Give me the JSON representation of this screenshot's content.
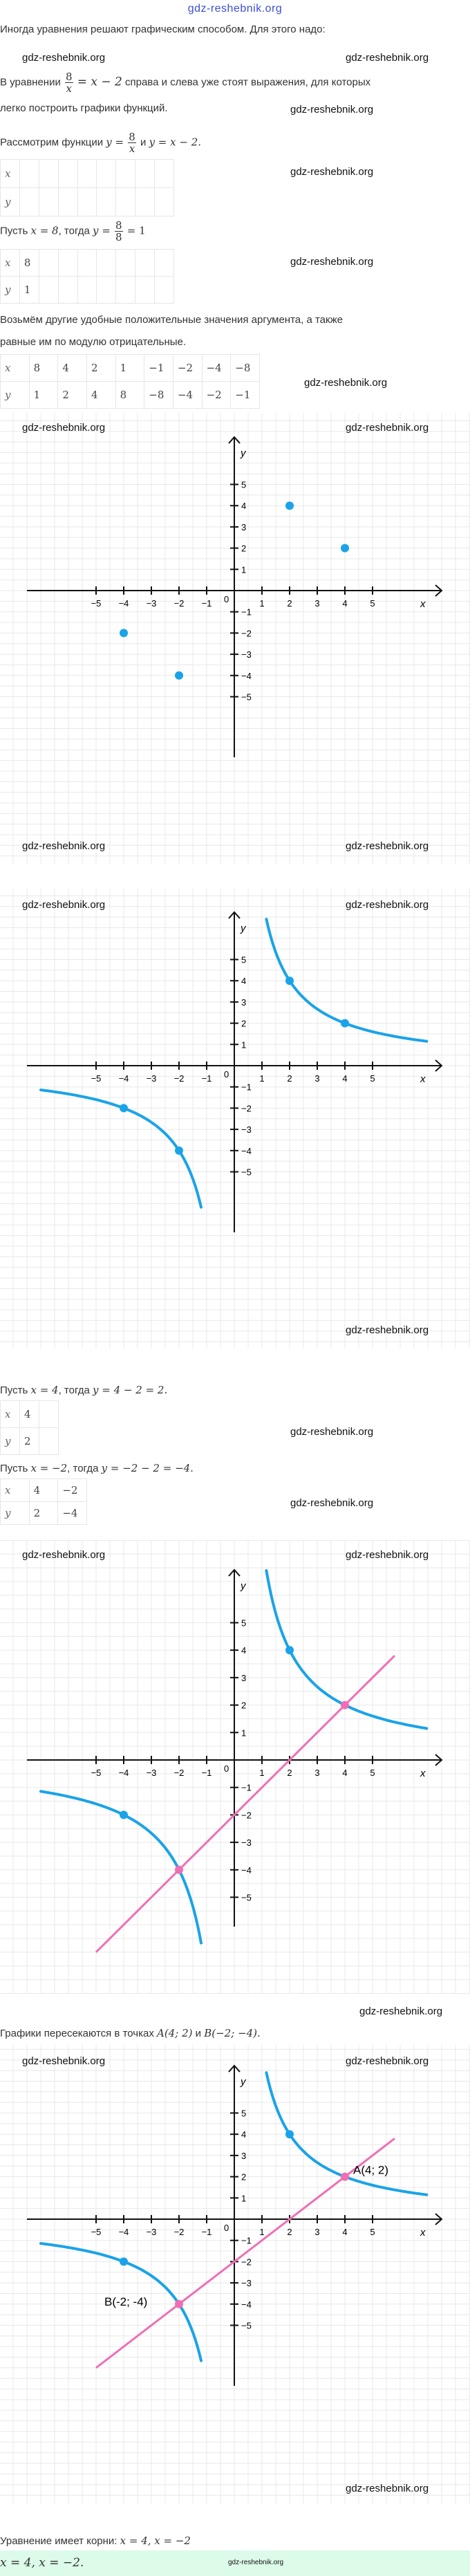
{
  "watermark": "gdz-reshebnik.org",
  "header": {
    "logo": "gdz-reshebnik.org"
  },
  "intro": {
    "line1": "Иногда уравнения решают графическим способом. Для этого надо:",
    "line2_before": "В уравнении",
    "line2_num": "8",
    "line2_den": "x",
    "line2_eq": "= x − 2",
    "line2_after": "справа и слева уже стоят выражения, для которых",
    "line3": "легко построить графики функций."
  },
  "consider": {
    "before": "Рассмотрим функции",
    "y1": "y =",
    "num": "8",
    "den": "x",
    "and": "и",
    "y2": "y = x − 2."
  },
  "table_empty": {
    "rows": [
      [
        "x",
        "",
        "",
        "",
        "",
        "",
        "",
        "",
        ""
      ],
      [
        "y",
        "",
        "",
        "",
        "",
        "",
        "",
        "",
        ""
      ]
    ]
  },
  "let8": {
    "before": "Пусть",
    "x": "x = 8",
    "then": ", тогда",
    "y": "y =",
    "num": "8",
    "den": "8",
    "res": "= 1"
  },
  "table_8": {
    "rows": [
      [
        "x",
        "8",
        "",
        "",
        "",
        "",
        "",
        "",
        ""
      ],
      [
        "y",
        "1",
        "",
        "",
        "",
        "",
        "",
        "",
        ""
      ]
    ]
  },
  "other": {
    "line1": "Возьмём другие удобные положительные значения аргумента, а также",
    "line2": "равные им по модулю отрицательные."
  },
  "table_full": {
    "rows": [
      [
        "x",
        "8",
        "4",
        "2",
        "1",
        "−1",
        "−2",
        "−4",
        "−8"
      ],
      [
        "y",
        "1",
        "2",
        "4",
        "8",
        "−8",
        "−4",
        "−2",
        "−1"
      ]
    ]
  },
  "let4": {
    "before": "Пусть",
    "x": "x = 4",
    "then": ", тогда",
    "y": "y = 4 − 2 = 2."
  },
  "table_4": {
    "rows": [
      [
        "x",
        "4",
        ""
      ],
      [
        "y",
        "2",
        ""
      ]
    ]
  },
  "letm2": {
    "before": "Пусть",
    "x": "x = −2",
    "then": ", тогда",
    "y": "y = −2 − 2 = −4."
  },
  "table_m2": {
    "rows": [
      [
        "x",
        "4",
        "−2"
      ],
      [
        "y",
        "2",
        "−4"
      ]
    ]
  },
  "intersect": {
    "before": "Графики пересекаются в точках",
    "a": "A(4; 2)",
    "and": "и",
    "b": "B(−2; −4)."
  },
  "roots": {
    "before": "Уравнение имеет корни:",
    "value": "x = 4, x = −2"
  },
  "answer": {
    "value": "x = 4, x = −2."
  },
  "colors": {
    "hyperbola": "#1aa3e8",
    "line": "#ef6fb4",
    "grid": "#e8e8e8",
    "axis": "#111111",
    "answer_bg": "#dcfbe9"
  },
  "chart_data": [
    {
      "type": "scatter",
      "xlabel": "x",
      "ylabel": "y",
      "origin_label": "0",
      "x_ticks": [
        "−5",
        "−4",
        "−3",
        "−2",
        "−1",
        "1",
        "2",
        "3",
        "4",
        "5"
      ],
      "y_ticks": [
        "5",
        "4",
        "3",
        "2",
        "1",
        "−1",
        "−2",
        "−3",
        "−4",
        "−5"
      ],
      "grid": true,
      "points": [
        [
          2,
          4
        ],
        [
          4,
          2
        ],
        [
          -4,
          -2
        ],
        [
          -2,
          -4
        ]
      ]
    },
    {
      "type": "line",
      "xlabel": "x",
      "ylabel": "y",
      "origin_label": "0",
      "x_ticks": [
        "−5",
        "−4",
        "−3",
        "−2",
        "−1",
        "1",
        "2",
        "3",
        "4",
        "5"
      ],
      "y_ticks": [
        "5",
        "4",
        "3",
        "2",
        "1",
        "−1",
        "−2",
        "−3",
        "−4",
        "−5"
      ],
      "grid": true,
      "functions": [
        "y = 8/x"
      ],
      "points": [
        [
          2,
          4
        ],
        [
          4,
          2
        ],
        [
          -4,
          -2
        ],
        [
          -2,
          -4
        ]
      ]
    },
    {
      "type": "line",
      "xlabel": "x",
      "ylabel": "y",
      "origin_label": "0",
      "x_ticks": [
        "−5",
        "−4",
        "−3",
        "−2",
        "−1",
        "1",
        "2",
        "3",
        "4",
        "5"
      ],
      "y_ticks": [
        "5",
        "4",
        "3",
        "2",
        "1",
        "−1",
        "−2",
        "−3",
        "−4",
        "−5"
      ],
      "grid": true,
      "functions": [
        "y = 8/x",
        "y = x − 2"
      ],
      "points": [
        [
          2,
          4
        ],
        [
          -4,
          -2
        ]
      ],
      "intersections": [
        [
          4,
          2
        ],
        [
          -2,
          -4
        ]
      ]
    },
    {
      "type": "line",
      "xlabel": "x",
      "ylabel": "y",
      "origin_label": "0",
      "x_ticks": [
        "−5",
        "−4",
        "−3",
        "−2",
        "−1",
        "1",
        "2",
        "3",
        "4",
        "5"
      ],
      "y_ticks": [
        "5",
        "4",
        "3",
        "2",
        "1",
        "−1",
        "−2",
        "−3",
        "−4",
        "−5"
      ],
      "grid": true,
      "functions": [
        "y = 8/x",
        "y = x − 2"
      ],
      "points": [
        [
          2,
          4
        ],
        [
          -4,
          -2
        ]
      ],
      "intersections": [
        [
          4,
          2
        ],
        [
          -2,
          -4
        ]
      ],
      "annotations": [
        "A(4; 2)",
        "B(-2; -4)"
      ]
    }
  ]
}
